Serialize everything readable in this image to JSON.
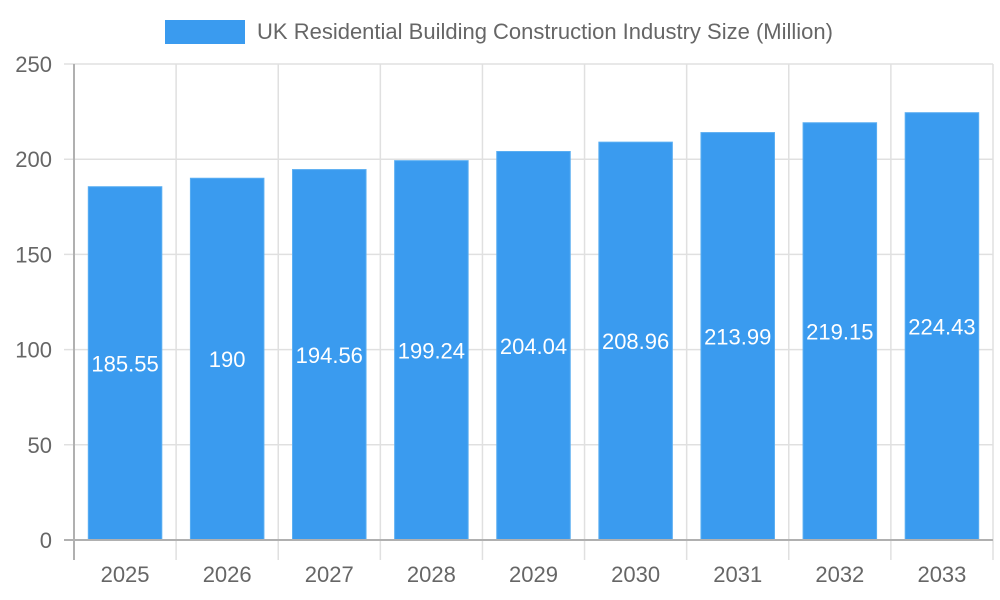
{
  "chart_data": {
    "type": "bar",
    "title": "",
    "legend": [
      "UK Residential Building Construction Industry Size (Million)"
    ],
    "legend_position": "top",
    "categories": [
      "2025",
      "2026",
      "2027",
      "2028",
      "2029",
      "2030",
      "2031",
      "2032",
      "2033"
    ],
    "series": [
      {
        "name": "UK Residential Building Construction Industry Size (Million)",
        "values": [
          185.55,
          190,
          194.56,
          199.24,
          204.04,
          208.96,
          213.99,
          219.15,
          224.43
        ],
        "color": "#3a9bef"
      }
    ],
    "data_labels": [
      "185.55",
      "190",
      "194.56",
      "199.24",
      "204.04",
      "208.96",
      "213.99",
      "219.15",
      "224.43"
    ],
    "xlabel": "",
    "ylabel": "",
    "ylim": [
      0,
      250
    ],
    "yticks": [
      "0",
      "50",
      "100",
      "150",
      "200",
      "250"
    ],
    "grid": true
  },
  "legend": {
    "label": "UK Residential Building Construction Industry Size (Million)",
    "color": "#3a9bef"
  }
}
